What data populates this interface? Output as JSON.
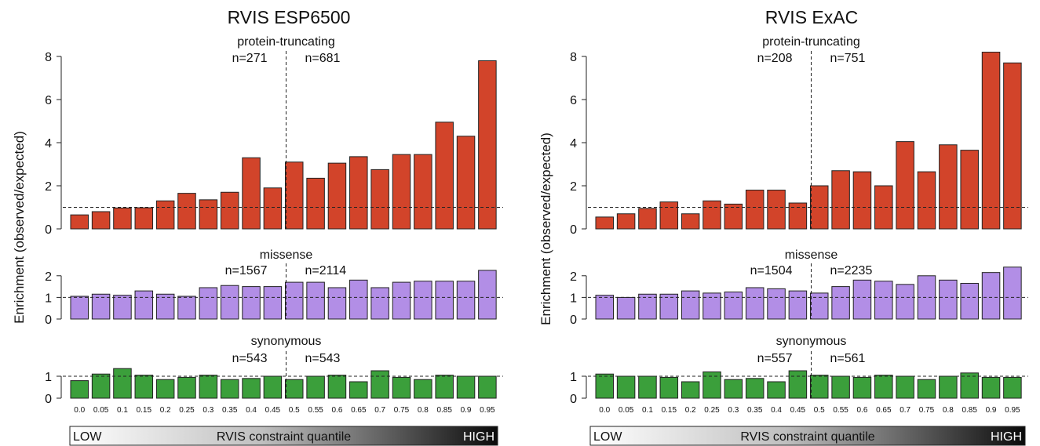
{
  "chart_data": [
    {
      "type": "bar",
      "title": "RVIS ESP6500",
      "ylabel": "Enrichment (observed/expected)",
      "categories": [
        "0.0",
        "0.05",
        "0.1",
        "0.15",
        "0.2",
        "0.25",
        "0.3",
        "0.35",
        "0.4",
        "0.45",
        "0.5",
        "0.55",
        "0.6",
        "0.65",
        "0.7",
        "0.75",
        "0.8",
        "0.85",
        "0.9",
        "0.95"
      ],
      "reference_line": 1,
      "split_after_category": "0.45",
      "scale_bar": {
        "left": "LOW",
        "center": "RVIS constraint quantile",
        "right": "HIGH"
      },
      "panels": [
        {
          "name": "protein-truncating",
          "color": "#d2442a",
          "ylim": [
            0,
            8
          ],
          "ticks": [
            0,
            2,
            4,
            6,
            8
          ],
          "n_left": "n=271",
          "n_right": "n=681",
          "values": [
            0.65,
            0.8,
            0.97,
            0.98,
            1.3,
            1.65,
            1.35,
            1.7,
            3.3,
            1.9,
            3.1,
            2.35,
            3.05,
            3.35,
            2.75,
            3.45,
            3.45,
            4.95,
            4.3,
            7.8
          ]
        },
        {
          "name": "missense",
          "color": "#b28ee6",
          "ylim": [
            0,
            2.5
          ],
          "ticks": [
            0,
            1,
            2
          ],
          "n_left": "n=1567",
          "n_right": "n=2114",
          "values": [
            1.05,
            1.15,
            1.1,
            1.3,
            1.15,
            1.05,
            1.45,
            1.55,
            1.5,
            1.5,
            1.7,
            1.7,
            1.45,
            1.8,
            1.45,
            1.7,
            1.75,
            1.75,
            1.75,
            2.25
          ]
        },
        {
          "name": "synonymous",
          "color": "#3b9f3b",
          "ylim": [
            0,
            1.5
          ],
          "ticks": [
            0,
            1
          ],
          "n_left": "n=543",
          "n_right": "n=543",
          "values": [
            0.8,
            1.1,
            1.35,
            1.05,
            0.85,
            0.95,
            1.05,
            0.85,
            0.9,
            1.0,
            0.85,
            1.0,
            1.05,
            0.75,
            1.25,
            0.95,
            0.85,
            1.05,
            1.0,
            1.0
          ]
        }
      ]
    },
    {
      "type": "bar",
      "title": "RVIS ExAC",
      "ylabel": "Enrichment (observed/expected)",
      "categories": [
        "0.0",
        "0.05",
        "0.1",
        "0.15",
        "0.2",
        "0.25",
        "0.3",
        "0.35",
        "0.4",
        "0.45",
        "0.5",
        "0.55",
        "0.6",
        "0.65",
        "0.7",
        "0.75",
        "0.8",
        "0.85",
        "0.9",
        "0.95"
      ],
      "reference_line": 1,
      "split_after_category": "0.45",
      "scale_bar": {
        "left": "LOW",
        "center": "RVIS constraint quantile",
        "right": "HIGH"
      },
      "panels": [
        {
          "name": "protein-truncating",
          "color": "#d2442a",
          "ylim": [
            0,
            8
          ],
          "ticks": [
            0,
            2,
            4,
            6,
            8
          ],
          "n_left": "n=208",
          "n_right": "n=751",
          "values": [
            0.55,
            0.7,
            0.95,
            1.25,
            0.7,
            1.3,
            1.15,
            1.8,
            1.8,
            1.2,
            2.0,
            2.7,
            2.65,
            2.0,
            4.05,
            2.65,
            3.9,
            3.65,
            8.2,
            7.7
          ]
        },
        {
          "name": "missense",
          "color": "#b28ee6",
          "ylim": [
            0,
            2.5
          ],
          "ticks": [
            0,
            1,
            2
          ],
          "n_left": "n=1504",
          "n_right": "n=2235",
          "values": [
            1.1,
            1.0,
            1.15,
            1.15,
            1.3,
            1.2,
            1.25,
            1.45,
            1.4,
            1.3,
            1.2,
            1.5,
            1.8,
            1.75,
            1.6,
            2.0,
            1.8,
            1.65,
            2.15,
            2.4
          ]
        },
        {
          "name": "synonymous",
          "color": "#3b9f3b",
          "ylim": [
            0,
            1.5
          ],
          "ticks": [
            0,
            1
          ],
          "n_left": "n=557",
          "n_right": "n=561",
          "values": [
            1.1,
            1.0,
            1.0,
            0.95,
            0.75,
            1.2,
            0.85,
            0.9,
            0.75,
            1.25,
            1.05,
            1.0,
            0.95,
            1.05,
            1.0,
            0.85,
            1.0,
            1.15,
            0.95,
            0.95
          ]
        }
      ]
    }
  ]
}
